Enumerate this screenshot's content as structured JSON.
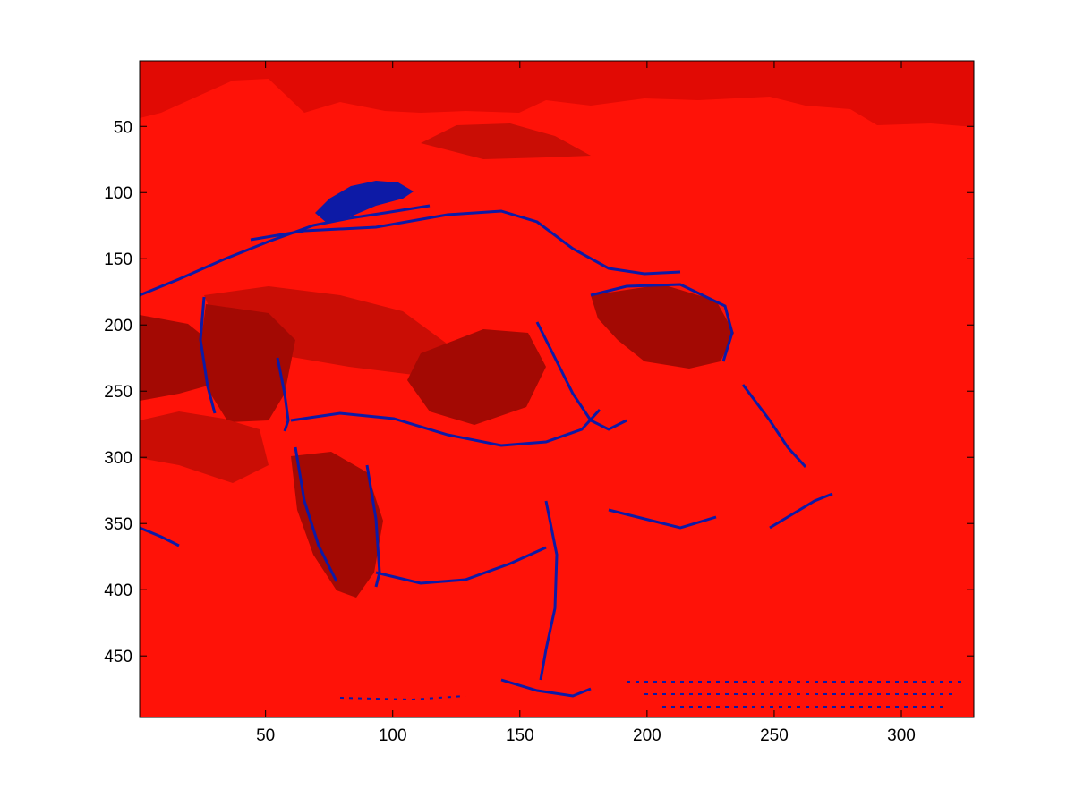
{
  "chart_data": {
    "type": "heatmap",
    "title": "",
    "xlabel": "",
    "ylabel": "",
    "xlim": [
      0.5,
      328.5
    ],
    "ylim": [
      0.5,
      496.5
    ],
    "y_direction": "reverse",
    "x_ticks": [
      50,
      100,
      150,
      200,
      250,
      300
    ],
    "x_tick_labels": [
      "50",
      "100",
      "150",
      "200",
      "250",
      "300"
    ],
    "y_ticks": [
      50,
      100,
      150,
      200,
      250,
      300,
      350,
      400,
      450
    ],
    "y_tick_labels": [
      "50",
      "100",
      "150",
      "200",
      "250",
      "300",
      "350",
      "400",
      "450"
    ],
    "colors": {
      "background_red": "#ff1208",
      "sky_red": "#e10a04",
      "mid_red": "#ca0d05",
      "dark_red": "#a30903",
      "edge_blue": "#0d1aa6"
    },
    "grid": false,
    "legend": "none"
  }
}
